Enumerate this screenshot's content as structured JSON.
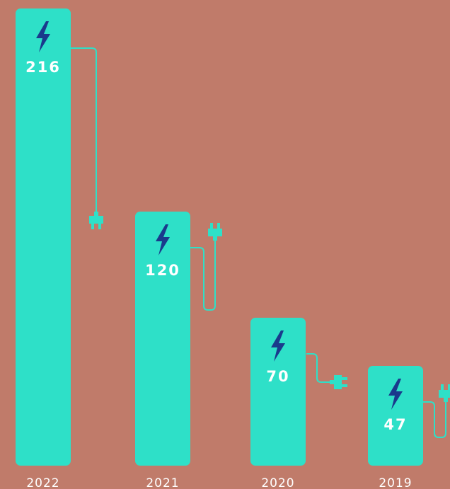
{
  "chart_data": {
    "type": "bar",
    "categories": [
      "2022",
      "2021",
      "2020",
      "2019"
    ],
    "values": [
      216,
      120,
      70,
      47
    ],
    "title": "",
    "xlabel": "",
    "ylabel": "",
    "ylim": [
      0,
      216
    ],
    "grid": false,
    "legend": "none"
  },
  "colors": {
    "background": "#c07b6a",
    "bar": "#2ee0c8",
    "bolt": "#1a3a8c",
    "label": "#ffffff"
  },
  "icons": {
    "bar_icon": "lightning-bolt-icon",
    "cable_icon": "power-plug-icon"
  }
}
